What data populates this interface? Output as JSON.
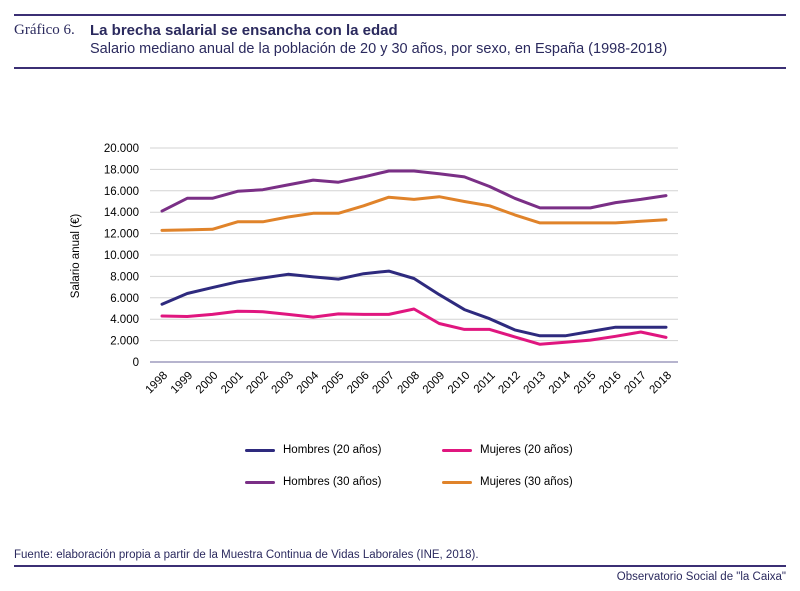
{
  "header": {
    "label": "Gráfico 6.",
    "title": "La brecha salarial se ensancha con la edad",
    "subtitle": "Salario mediano anual de la población de 20 y 30 años, por sexo, en España (1998-2018)"
  },
  "chart_data": {
    "type": "line",
    "x": [
      "1998",
      "1999",
      "2000",
      "2001",
      "2002",
      "2003",
      "2004",
      "2005",
      "2006",
      "2007",
      "2008",
      "2009",
      "2010",
      "2011",
      "2012",
      "2013",
      "2014",
      "2015",
      "2016",
      "2017",
      "2018"
    ],
    "ylabel": "Salario anual (€)",
    "xlabel": "",
    "ylim": [
      0,
      20000
    ],
    "yticks": [
      0,
      2000,
      4000,
      6000,
      8000,
      10000,
      12000,
      14000,
      16000,
      18000,
      20000
    ],
    "ytick_labels": [
      "0",
      "2.000",
      "4.000",
      "6.000",
      "8.000",
      "10.000",
      "12.000",
      "14.000",
      "16.000",
      "18.000",
      "20.000"
    ],
    "grid": true,
    "legend_position": "bottom",
    "series": [
      {
        "name": "Hombres (20 años)",
        "color": "#2e2a7e",
        "values": [
          5400,
          6400,
          6950,
          7500,
          7850,
          8200,
          7950,
          7750,
          8250,
          8500,
          7800,
          6300,
          4900,
          4050,
          3000,
          2450,
          2450,
          2850,
          3250,
          3250,
          3250
        ]
      },
      {
        "name": "Mujeres (20 años)",
        "color": "#e0167f",
        "values": [
          4300,
          4250,
          4450,
          4750,
          4700,
          4450,
          4200,
          4500,
          4450,
          4450,
          4950,
          3600,
          3050,
          3050,
          2350,
          1650,
          1850,
          2050,
          2400,
          2800,
          2300
        ]
      },
      {
        "name": "Hombres (30 años)",
        "color": "#7a2f86",
        "values": [
          14100,
          15300,
          15300,
          15950,
          16100,
          16550,
          17000,
          16800,
          17300,
          17850,
          17850,
          17600,
          17300,
          16400,
          15300,
          14400,
          14400,
          14400,
          14900,
          15200,
          15550
        ]
      },
      {
        "name": "Mujeres (30 años)",
        "color": "#e0832a",
        "values": [
          12300,
          12350,
          12400,
          13100,
          13100,
          13550,
          13900,
          13900,
          14600,
          15400,
          15200,
          15450,
          15000,
          14600,
          13750,
          13000,
          13000,
          13000,
          13000,
          13150,
          13300
        ]
      }
    ]
  },
  "source": "Fuente: elaboración propia a partir de la Muestra Continua de Vidas Laborales (INE, 2018).",
  "footer": "Observatorio Social de \"la Caixa\""
}
